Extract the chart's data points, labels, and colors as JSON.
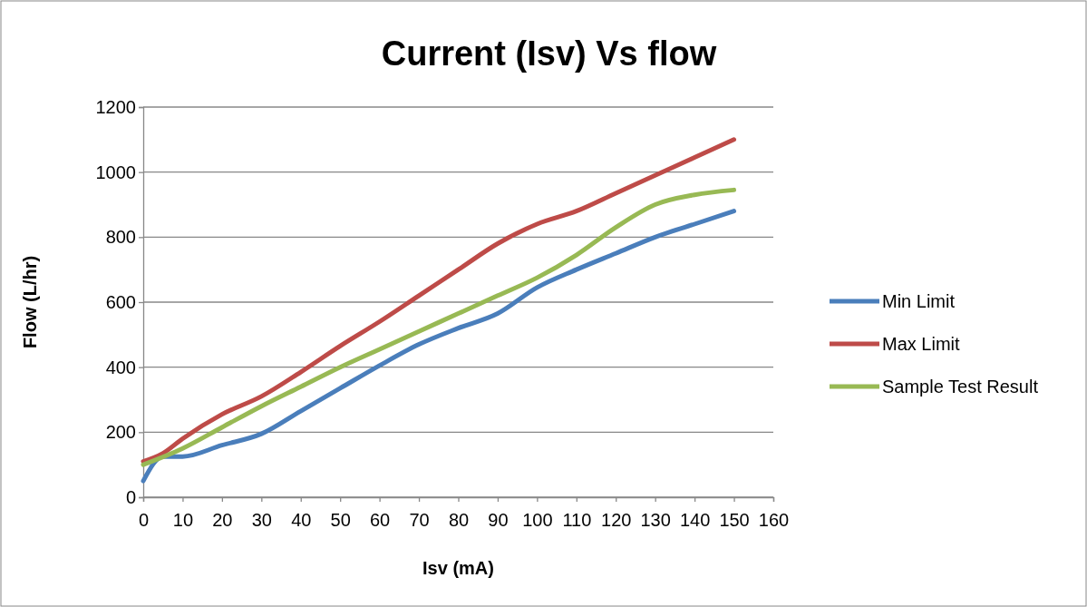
{
  "chart_data": {
    "type": "line",
    "title": "Current (Isv)  Vs flow",
    "xlabel": "Isv (mA)",
    "ylabel": "Flow (L/hr)",
    "xlim": [
      0,
      160
    ],
    "xticks": [
      0,
      10,
      20,
      30,
      40,
      50,
      60,
      70,
      80,
      90,
      100,
      110,
      120,
      130,
      140,
      150,
      160
    ],
    "ylim": [
      0,
      1200
    ],
    "yticks": [
      0,
      200,
      400,
      600,
      800,
      1000,
      1200
    ],
    "grid": "y",
    "legend": "right",
    "marker": "none",
    "line_style": "solid",
    "series": [
      {
        "name": "Min Limit",
        "color": "#4a7ebb",
        "x": [
          0,
          5,
          10,
          20,
          30,
          40,
          50,
          60,
          70,
          80,
          90,
          100,
          110,
          120,
          130,
          140,
          150
        ],
        "values": [
          50,
          125,
          125,
          160,
          195,
          265,
          335,
          405,
          470,
          520,
          565,
          645,
          700,
          750,
          800,
          840,
          880
        ]
      },
      {
        "name": "Max Limit",
        "color": "#be4b48",
        "x": [
          0,
          5,
          10,
          20,
          30,
          40,
          50,
          60,
          70,
          80,
          90,
          100,
          110,
          120,
          130,
          140,
          150
        ],
        "values": [
          110,
          135,
          180,
          255,
          310,
          385,
          465,
          540,
          620,
          700,
          780,
          840,
          880,
          935,
          990,
          1045,
          1100
        ]
      },
      {
        "name": "Sample Test Result",
        "color": "#98b954",
        "x": [
          0,
          10,
          20,
          30,
          40,
          50,
          60,
          70,
          80,
          90,
          100,
          110,
          120,
          130,
          140,
          150
        ],
        "values": [
          100,
          150,
          215,
          280,
          340,
          400,
          455,
          510,
          565,
          620,
          675,
          745,
          830,
          900,
          930,
          945
        ]
      }
    ]
  }
}
